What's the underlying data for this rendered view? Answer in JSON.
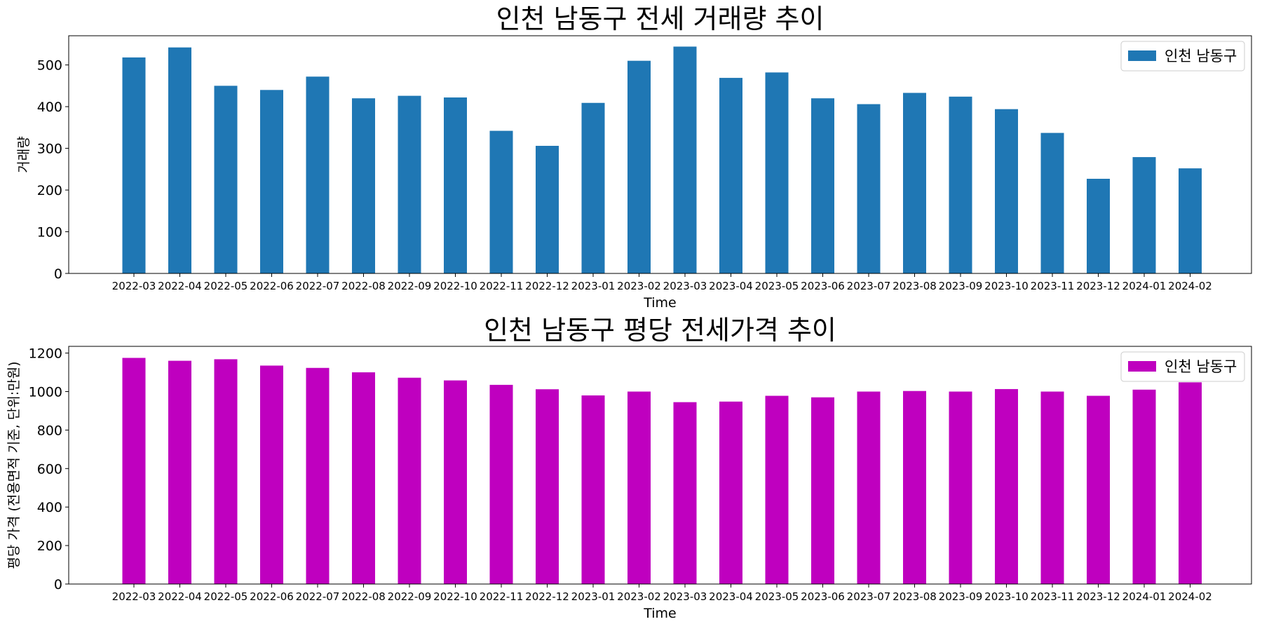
{
  "chart_data": [
    {
      "type": "bar",
      "title": "인천 남동구 전세 거래량 추이",
      "xlabel": "Time",
      "ylabel": "거래량",
      "categories": [
        "2022-03",
        "2022-04",
        "2022-05",
        "2022-06",
        "2022-07",
        "2022-08",
        "2022-09",
        "2022-10",
        "2022-11",
        "2022-12",
        "2023-01",
        "2023-02",
        "2023-03",
        "2023-04",
        "2023-05",
        "2023-06",
        "2023-07",
        "2023-08",
        "2023-09",
        "2023-10",
        "2023-11",
        "2023-12",
        "2024-01",
        "2024-02"
      ],
      "series": [
        {
          "name": "인천 남동구",
          "color": "#1f77b4",
          "values": [
            518,
            542,
            450,
            440,
            472,
            420,
            426,
            422,
            342,
            306,
            409,
            510,
            544,
            469,
            482,
            420,
            406,
            433,
            424,
            394,
            337,
            227,
            279,
            252
          ]
        }
      ],
      "ylim": [
        0,
        570
      ],
      "yticks": [
        0,
        100,
        200,
        300,
        400,
        500
      ],
      "grid": false,
      "legend": "top-right"
    },
    {
      "type": "bar",
      "title": "인천 남동구 평당 전세가격 추이",
      "xlabel": "Time",
      "ylabel": "평당 가격 (전용면적 기준, 단위:만원)",
      "categories": [
        "2022-03",
        "2022-04",
        "2022-05",
        "2022-06",
        "2022-07",
        "2022-08",
        "2022-09",
        "2022-10",
        "2022-11",
        "2022-12",
        "2023-01",
        "2023-02",
        "2023-03",
        "2023-04",
        "2023-05",
        "2023-06",
        "2023-07",
        "2023-08",
        "2023-09",
        "2023-10",
        "2023-11",
        "2023-12",
        "2024-01",
        "2024-02"
      ],
      "series": [
        {
          "name": "인천 남동구",
          "color": "#bf00bf",
          "values": [
            1175,
            1160,
            1168,
            1135,
            1123,
            1100,
            1072,
            1058,
            1035,
            1012,
            980,
            1000,
            945,
            948,
            978,
            970,
            1000,
            1003,
            1000,
            1013,
            1000,
            978,
            1010,
            1048
          ]
        }
      ],
      "ylim": [
        0,
        1235
      ],
      "yticks": [
        0,
        200,
        400,
        600,
        800,
        1000,
        1200
      ],
      "grid": false,
      "legend": "top-right"
    }
  ]
}
